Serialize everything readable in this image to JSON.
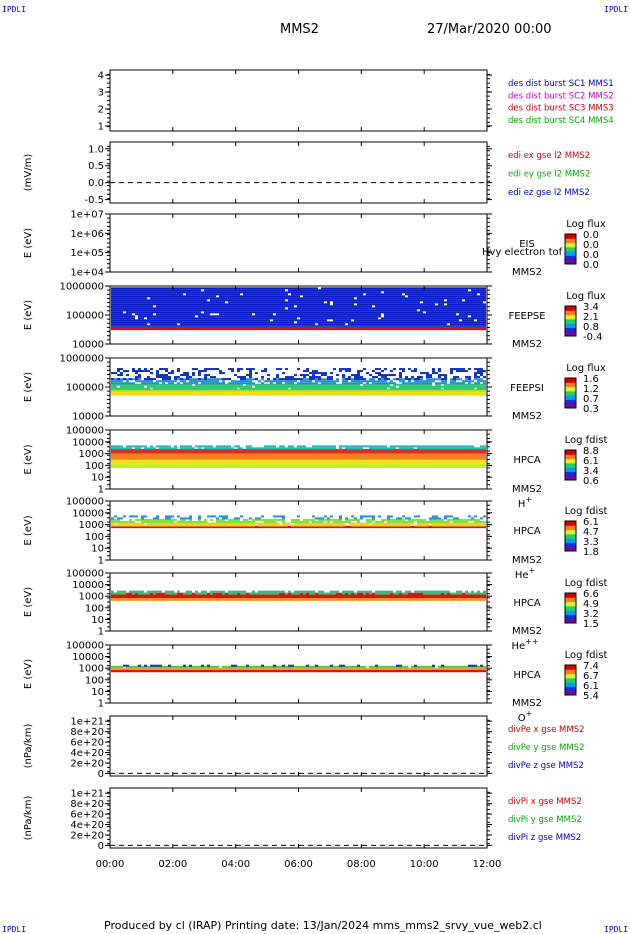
{
  "header": {
    "corner_label": "IPDLI",
    "spacecraft": "MMS2",
    "datetime": "27/Mar/2020 00:00"
  },
  "footer": {
    "text": "Produced by cl (IRAP)   Printing date: 13/Jan/2024   mms_mms2_srvy_vue_web2.cl"
  },
  "chart_data": [
    {
      "type": "line",
      "panel": "sc-index",
      "ylabel": "",
      "yticks": [
        "1",
        "2",
        "3",
        "4"
      ],
      "ylim": [
        0.7,
        4.3
      ],
      "legend": [
        {
          "text": "des dist burst SC1 MMS1",
          "color": "#0000cc"
        },
        {
          "text": "des dist burst SC2 MMS2",
          "color": "#cc00cc"
        },
        {
          "text": "des dist burst SC3 MMS3",
          "color": "#cc0000"
        },
        {
          "text": "des dist burst SC4 MMS4",
          "color": "#00aa00"
        }
      ],
      "series": []
    },
    {
      "type": "line",
      "panel": "edi-e",
      "ylabel": "(mV/m)",
      "yticks": [
        "-0.5",
        "0.0",
        "0.5",
        "1.0"
      ],
      "ylim": [
        -0.6,
        1.2
      ],
      "zero_line": true,
      "legend": [
        {
          "text": "edi ex gse l2 MMS2",
          "color": "#cc0000"
        },
        {
          "text": "edi ey gse l2 MMS2",
          "color": "#00aa00"
        },
        {
          "text": "edi ez gse l2 MMS2",
          "color": "#0000cc"
        }
      ],
      "series": []
    },
    {
      "type": "heatmap",
      "panel": "eis",
      "ylabel": "E (eV)",
      "yticks": [
        "1e+04",
        "1e+05",
        "1e+06",
        "1e+07"
      ],
      "log_y": true,
      "ylim": [
        10000,
        10000000
      ],
      "instrument": [
        "EIS",
        "MMS2"
      ],
      "overlay_text": "Hvy electron tof",
      "colorbar_title": "Log flux",
      "colorbar_ticks": [
        "0.0",
        "0.0",
        "0.0",
        "0.0"
      ],
      "band": null
    },
    {
      "type": "heatmap",
      "panel": "feeps-e",
      "ylabel": "E (eV)",
      "yticks": [
        "10000",
        "100000",
        "1000000"
      ],
      "log_y": true,
      "ylim": [
        10000,
        1000000
      ],
      "instrument": [
        "FEEPSE",
        "MMS2"
      ],
      "colorbar_title": "Log flux",
      "colorbar_ticks": [
        "3.4",
        "2.1",
        "0.8",
        "-0.4"
      ],
      "band": {
        "layers": [
          {
            "from": 30000,
            "to": 37000,
            "color": "#dd1010",
            "fill": 1.0
          },
          {
            "from": 37000,
            "to": 45000,
            "color": "#2a3fd8",
            "fill": 1.0
          },
          {
            "from": 45000,
            "to": 900000,
            "color": "#0a1dc8",
            "fill": 0.97
          }
        ]
      }
    },
    {
      "type": "heatmap",
      "panel": "feeps-i",
      "ylabel": "E (eV)",
      "yticks": [
        "10000",
        "100000",
        "1000000"
      ],
      "log_y": true,
      "ylim": [
        10000,
        1000000
      ],
      "instrument": [
        "FEEPSI",
        "MMS2"
      ],
      "colorbar_title": "Log flux",
      "colorbar_ticks": [
        "1.6",
        "1.2",
        "0.7",
        "0.3"
      ],
      "band": {
        "layers": [
          {
            "from": 50000,
            "to": 70000,
            "color": "#f0e020",
            "fill": 1.0
          },
          {
            "from": 70000,
            "to": 90000,
            "color": "#a0e020",
            "fill": 1.0
          },
          {
            "from": 90000,
            "to": 130000,
            "color": "#30c070",
            "fill": 0.95
          },
          {
            "from": 130000,
            "to": 200000,
            "color": "#2090d0",
            "fill": 0.75
          },
          {
            "from": 200000,
            "to": 450000,
            "color": "#1030c0",
            "fill": 0.4
          }
        ]
      }
    },
    {
      "type": "heatmap",
      "panel": "hpca-h",
      "ylabel": "E (eV)",
      "yticks": [
        "1",
        "10",
        "100",
        "1000",
        "10000",
        "100000"
      ],
      "log_y": true,
      "ylim": [
        1,
        100000
      ],
      "instrument": [
        "HPCA",
        "MMS2"
      ],
      "species": "H",
      "species_sup": "+",
      "colorbar_title": "Log fdist",
      "colorbar_ticks": [
        "8.8",
        "6.1",
        "3.4",
        "0.6"
      ],
      "band": {
        "layers": [
          {
            "from": 60,
            "to": 150,
            "color": "#c8f020",
            "fill": 1.0
          },
          {
            "from": 150,
            "to": 300,
            "color": "#f0e020",
            "fill": 1.0
          },
          {
            "from": 300,
            "to": 1000,
            "color": "#f08020",
            "fill": 1.0
          },
          {
            "from": 1000,
            "to": 2500,
            "color": "#d83020",
            "fill": 1.0
          },
          {
            "from": 2500,
            "to": 5000,
            "color": "#20b8b8",
            "fill": 0.85
          }
        ]
      }
    },
    {
      "type": "heatmap",
      "panel": "hpca-he1",
      "ylabel": "E (eV)",
      "yticks": [
        "1",
        "10",
        "100",
        "1000",
        "10000",
        "100000"
      ],
      "log_y": true,
      "ylim": [
        1,
        100000
      ],
      "instrument": [
        "HPCA",
        "MMS2"
      ],
      "species": "He",
      "species_sup": "+",
      "colorbar_title": "Log fdist",
      "colorbar_ticks": [
        "6.1",
        "4.7",
        "3.3",
        "1.8"
      ],
      "band": {
        "layers": [
          {
            "from": 500,
            "to": 800,
            "color": "#e01010",
            "fill": 1.0
          },
          {
            "from": 800,
            "to": 1500,
            "color": "#f0d020",
            "fill": 0.95
          },
          {
            "from": 1500,
            "to": 3000,
            "color": "#80e040",
            "fill": 0.8
          },
          {
            "from": 3000,
            "to": 6000,
            "color": "#2090e0",
            "fill": 0.4
          }
        ]
      }
    },
    {
      "type": "heatmap",
      "panel": "hpca-he2",
      "ylabel": "E (eV)",
      "yticks": [
        "1",
        "10",
        "100",
        "1000",
        "10000",
        "100000"
      ],
      "log_y": true,
      "ylim": [
        1,
        100000
      ],
      "instrument": [
        "HPCA",
        "MMS2"
      ],
      "species": "He",
      "species_sup": "++",
      "colorbar_title": "Log fdist",
      "colorbar_ticks": [
        "6.6",
        "4.9",
        "3.2",
        "1.5"
      ],
      "band": {
        "layers": [
          {
            "from": 400,
            "to": 700,
            "color": "#f09020",
            "fill": 1.0
          },
          {
            "from": 700,
            "to": 2000,
            "color": "#e01010",
            "fill": 1.0
          },
          {
            "from": 2000,
            "to": 3000,
            "color": "#30c070",
            "fill": 0.7
          }
        ]
      }
    },
    {
      "type": "heatmap",
      "panel": "hpca-o",
      "ylabel": "E (eV)",
      "yticks": [
        "1",
        "10",
        "100",
        "1000",
        "10000",
        "100000"
      ],
      "log_y": true,
      "ylim": [
        1,
        100000
      ],
      "instrument": [
        "HPCA",
        "MMS2"
      ],
      "species": "O",
      "species_sup": "+",
      "colorbar_title": "Log fdist",
      "colorbar_ticks": [
        "7.4",
        "6.7",
        "6.1",
        "5.4"
      ],
      "band": {
        "layers": [
          {
            "from": 450,
            "to": 700,
            "color": "#e01010",
            "fill": 1.0
          },
          {
            "from": 700,
            "to": 1100,
            "color": "#f0a020",
            "fill": 1.0
          },
          {
            "from": 1100,
            "to": 1600,
            "color": "#40d040",
            "fill": 0.95
          },
          {
            "from": 1600,
            "to": 2000,
            "color": "#1030c0",
            "fill": 0.35
          }
        ]
      }
    },
    {
      "type": "line",
      "panel": "divpe",
      "ylabel": "(nPa/km)",
      "yticks": [
        "0",
        "2e+20",
        "4e+20",
        "6e+20",
        "8e+20",
        "1e+21"
      ],
      "ylim": [
        -5e+19,
        1.1e+21
      ],
      "zero_line": true,
      "legend": [
        {
          "text": "divPe x gse MMS2",
          "color": "#cc0000"
        },
        {
          "text": "divPe y gse MMS2",
          "color": "#00aa00"
        },
        {
          "text": "divPe z gse MMS2",
          "color": "#0000cc"
        }
      ],
      "series": []
    },
    {
      "type": "line",
      "panel": "divpi",
      "ylabel": "(nPa/km)",
      "yticks": [
        "0",
        "2e+20",
        "4e+20",
        "6e+20",
        "8e+20",
        "1e+21"
      ],
      "ylim": [
        -5e+19,
        1.1e+21
      ],
      "zero_line": true,
      "legend": [
        {
          "text": "divPi x gse MMS2",
          "color": "#cc0000"
        },
        {
          "text": "divPi y gse MMS2",
          "color": "#00aa00"
        },
        {
          "text": "divPi z gse MMS2",
          "color": "#0000cc"
        }
      ],
      "series": []
    }
  ],
  "time_axis": {
    "ticks": [
      "00:00",
      "02:00",
      "04:00",
      "06:00",
      "08:00",
      "10:00",
      "12:00"
    ],
    "range_hours": [
      0,
      12
    ]
  }
}
